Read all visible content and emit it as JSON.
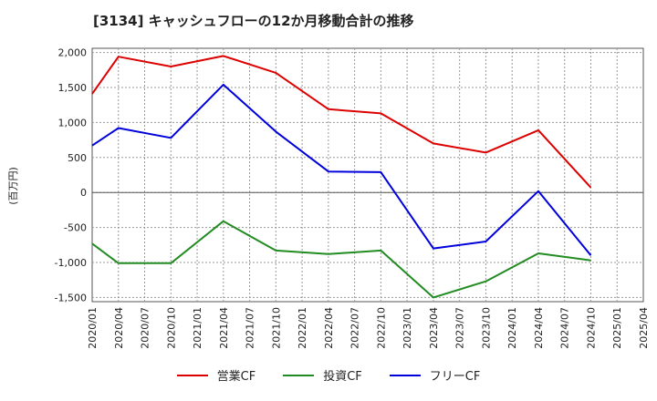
{
  "chart_data": {
    "type": "line",
    "title": "[3134]  キャッシュフローの12か月移動合計の推移",
    "ylabel": "(百万円)",
    "xlabel": "",
    "ylim": [
      -1560,
      2060
    ],
    "yticks": [
      2000,
      1500,
      1000,
      500,
      0,
      -500,
      -1000,
      -1500
    ],
    "ytick_labels": [
      "2,000",
      "1,500",
      "1,000",
      "500",
      "0",
      "-500",
      "-1,000",
      "-1,500"
    ],
    "xticks": [
      "2020/01",
      "2020/04",
      "2020/07",
      "2020/10",
      "2021/01",
      "2021/04",
      "2021/07",
      "2021/10",
      "2022/01",
      "2022/04",
      "2022/07",
      "2022/10",
      "2023/01",
      "2023/04",
      "2023/07",
      "2023/10",
      "2024/01",
      "2024/04",
      "2024/07",
      "2024/10",
      "2025/01",
      "2025/04"
    ],
    "grid": true,
    "legend_position": "bottom",
    "series": [
      {
        "name": "営業CF",
        "color": "#dd0000",
        "x": [
          "2020/01",
          "2020/04",
          "2020/10",
          "2021/04",
          "2021/10",
          "2022/04",
          "2022/10",
          "2023/04",
          "2023/10",
          "2024/04",
          "2024/10"
        ],
        "values": [
          1410,
          1940,
          1800,
          1950,
          1710,
          1190,
          1130,
          700,
          570,
          890,
          70
        ]
      },
      {
        "name": "投資CF",
        "color": "#228b22",
        "x": [
          "2020/01",
          "2020/04",
          "2020/10",
          "2021/04",
          "2021/10",
          "2022/04",
          "2022/10",
          "2023/04",
          "2023/10",
          "2024/04",
          "2024/10"
        ],
        "values": [
          -730,
          -1010,
          -1010,
          -410,
          -830,
          -880,
          -830,
          -1500,
          -1270,
          -870,
          -970
        ]
      },
      {
        "name": "フリーCF",
        "color": "#0000dd",
        "x": [
          "2020/01",
          "2020/04",
          "2020/10",
          "2021/04",
          "2021/10",
          "2022/04",
          "2022/10",
          "2023/04",
          "2023/10",
          "2024/04",
          "2024/10"
        ],
        "values": [
          670,
          920,
          780,
          1540,
          870,
          300,
          290,
          -800,
          -700,
          20,
          -900
        ]
      }
    ]
  }
}
